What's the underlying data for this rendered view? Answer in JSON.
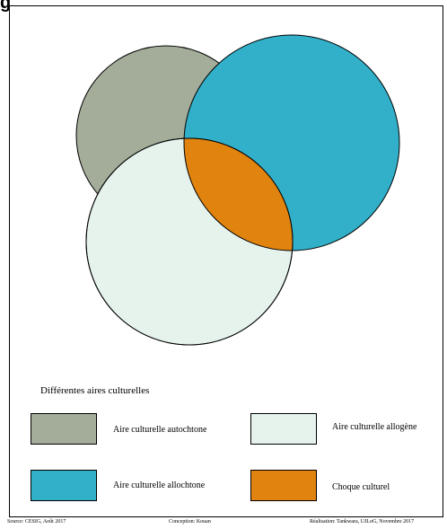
{
  "header": {
    "fragment": "g"
  },
  "colors": {
    "autochtone": "#a3ad99",
    "allochtone": "#32b0c9",
    "allogene": "#e5f3ec",
    "choque": "#e1830f"
  },
  "legend": {
    "title": "Différentes aires culturelles",
    "items": [
      {
        "label": "Aire culturelle autochtone",
        "color": "#a3ad99"
      },
      {
        "label": "Aire culturelle allogène",
        "color": "#e5f3ec"
      },
      {
        "label": "Aire culturelle allochtone",
        "color": "#32b0c9"
      },
      {
        "label": "Choque culturel",
        "color": "#e1830f"
      }
    ]
  },
  "footer": {
    "source": "Source: CESIG, Août 2017",
    "conception": "Conception: Kouan",
    "realisation": "Réalisation: Tankwara, UJLoG, Novembre 2017"
  }
}
